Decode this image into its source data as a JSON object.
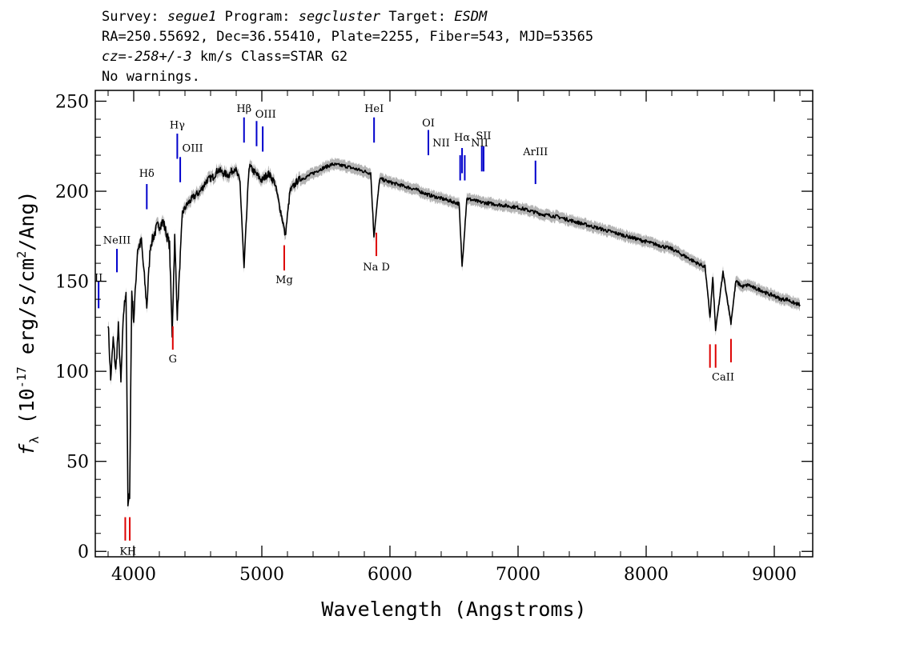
{
  "header": {
    "survey_label": "Survey:",
    "survey_value": "segue1",
    "program_label": "Program:",
    "program_value": "segcluster",
    "target_label": "Target:",
    "target_value": "ESDM",
    "line2": "RA=250.55692, Dec=36.55410, Plate=2255, Fiber=543, MJD=53565",
    "cz_label": "cz=",
    "cz_value": "-258+/-3",
    "cz_rest": " km/s Class=STAR G2",
    "line4": "No warnings."
  },
  "colors": {
    "spectrum": "#000000",
    "error_band": "#b4b4b4",
    "emission_lines": "#0000cc",
    "absorption_lines": "#dd0000"
  },
  "chart_data": {
    "type": "line",
    "xlabel": "Wavelength (Angstroms)",
    "ylabel_parts": [
      "f",
      "λ",
      " (10",
      "-17",
      " erg/s/cm",
      "2",
      "/Ang)"
    ],
    "xlim": [
      3700,
      9300
    ],
    "ylim": [
      -3,
      256
    ],
    "x_ticks": [
      4000,
      5000,
      6000,
      7000,
      8000,
      9000
    ],
    "x_tick_labels": [
      "4000",
      "5000",
      "6000",
      "7000",
      "8000",
      "9000"
    ],
    "y_ticks": [
      0,
      50,
      100,
      150,
      200,
      250
    ],
    "y_tick_labels": [
      "0",
      "50",
      "100",
      "150",
      "200",
      "250"
    ],
    "grid": false,
    "series": [
      {
        "x": [
          3800,
          3820,
          3840,
          3860,
          3880,
          3900,
          3920,
          3940,
          3955,
          3968,
          3985,
          4000,
          4030,
          4060,
          4102,
          4130,
          4180,
          4230,
          4280,
          4300,
          4320,
          4340,
          4380,
          4420,
          4470,
          4520,
          4570,
          4620,
          4660,
          4700,
          4740,
          4790,
          4830,
          4861,
          4900,
          4950,
          5000,
          5050,
          5100,
          5167,
          5183,
          5220,
          5280,
          5350,
          5450,
          5550,
          5650,
          5750,
          5850,
          5875,
          5893,
          5920,
          6000,
          6100,
          6200,
          6300,
          6400,
          6450,
          6500,
          6540,
          6563,
          6600,
          6650,
          6700,
          6800,
          6900,
          7000,
          7100,
          7200,
          7300,
          7400,
          7500,
          7600,
          7700,
          7800,
          7900,
          8000,
          8100,
          8200,
          8300,
          8400,
          8460,
          8498,
          8520,
          8542,
          8600,
          8662,
          8700,
          8750,
          8800,
          8850,
          8900,
          8950,
          9000,
          9050,
          9100,
          9150,
          9200
        ],
        "y": [
          128,
          95,
          118,
          100,
          125,
          93,
          132,
          145,
          25,
          32,
          145,
          128,
          168,
          172,
          136,
          170,
          180,
          183,
          170,
          120,
          175,
          130,
          188,
          193,
          197,
          200,
          206,
          208,
          212,
          210,
          209,
          213,
          205,
          157,
          214,
          210,
          206,
          210,
          205,
          182,
          175,
          200,
          206,
          208,
          212,
          215,
          214,
          212,
          210,
          175,
          188,
          207,
          205,
          203,
          201,
          198,
          196,
          195,
          194,
          193,
          158,
          196,
          195,
          194,
          193,
          192,
          191,
          189,
          187,
          186,
          184,
          182,
          180,
          178,
          176,
          174,
          172,
          170,
          168,
          164,
          160,
          158,
          130,
          152,
          123,
          155,
          127,
          150,
          147,
          148,
          146,
          145,
          143,
          142,
          140,
          140,
          138,
          137
        ]
      }
    ],
    "emission_lines": [
      {
        "label": "II",
        "x": 3726,
        "y1": 135,
        "y2": 150,
        "label_x": 3726,
        "label_y": 150,
        "anchor": "middle"
      },
      {
        "label": "NeIII",
        "x": 3869,
        "y1": 155,
        "y2": 168,
        "label_x": 3869,
        "label_y": 171,
        "anchor": "middle"
      },
      {
        "label": "Hδ",
        "x": 4102,
        "y1": 190,
        "y2": 204,
        "label_x": 4102,
        "label_y": 208,
        "anchor": "middle"
      },
      {
        "label": "Hγ",
        "x": 4340,
        "y1": 218,
        "y2": 232,
        "label_x": 4340,
        "label_y": 235,
        "anchor": "middle"
      },
      {
        "label": "OIII",
        "x": 4363,
        "y1": 205,
        "y2": 219,
        "label_x": 4460,
        "label_y": 222,
        "anchor": "middle"
      },
      {
        "label": "Hβ",
        "x": 4861,
        "y1": 227,
        "y2": 241,
        "label_x": 4861,
        "label_y": 244,
        "anchor": "middle"
      },
      {
        "label": "OIII",
        "x": 4959,
        "y1": 225,
        "y2": 239,
        "label_x": 5030,
        "label_y": 241,
        "anchor": "middle"
      },
      {
        "label": "OIII",
        "x": 5007,
        "y1": 222,
        "y2": 236,
        "label_x": null,
        "label_y": null,
        "anchor": "middle"
      },
      {
        "label": "HeI",
        "x": 5876,
        "y1": 227,
        "y2": 241,
        "label_x": 5876,
        "label_y": 244,
        "anchor": "middle"
      },
      {
        "label": "OI",
        "x": 6300,
        "y1": 220,
        "y2": 234,
        "label_x": 6300,
        "label_y": 236,
        "anchor": "middle"
      },
      {
        "label": "NII",
        "x": 6548,
        "y1": 206,
        "y2": 220,
        "label_x": 6400,
        "label_y": 225,
        "anchor": "middle"
      },
      {
        "label": "Hα",
        "x": 6563,
        "y1": 210,
        "y2": 224,
        "label_x": 6563,
        "label_y": 228,
        "anchor": "middle"
      },
      {
        "label": "NII",
        "x": 6584,
        "y1": 206,
        "y2": 220,
        "label_x": null,
        "label_y": null,
        "anchor": "middle"
      },
      {
        "label": "NII",
        "x": 6717,
        "y1": 211,
        "y2": 225,
        "label_x": 6700,
        "label_y": 225,
        "anchor": "middle"
      },
      {
        "label": "SII",
        "x": 6731,
        "y1": 211,
        "y2": 225,
        "label_x": 6731,
        "label_y": 229,
        "anchor": "middle"
      },
      {
        "label": "ArIII",
        "x": 7136,
        "y1": 204,
        "y2": 217,
        "label_x": 7136,
        "label_y": 220,
        "anchor": "middle"
      }
    ],
    "absorption_lines": [
      {
        "label": "K",
        "x": 3934,
        "y1": 6,
        "y2": 19,
        "label_x": 3920,
        "label_y": -2
      },
      {
        "label": "H",
        "x": 3969,
        "y1": 6,
        "y2": 19,
        "label_x": 3985,
        "label_y": -2
      },
      {
        "label": "G",
        "x": 4305,
        "y1": 112,
        "y2": 125,
        "label_x": 4305,
        "label_y": 105
      },
      {
        "label": "Mg",
        "x": 5175,
        "y1": 156,
        "y2": 170,
        "label_x": 5175,
        "label_y": 149
      },
      {
        "label": "Na  D",
        "x": 5894,
        "y1": 164,
        "y2": 177,
        "label_x": 5894,
        "label_y": 156
      },
      {
        "label": "CaII",
        "x": 8498,
        "y1": 102,
        "y2": 115,
        "label_x": 8600,
        "label_y": 95
      },
      {
        "label": "",
        "x": 8542,
        "y1": 102,
        "y2": 115,
        "label_x": null,
        "label_y": null
      },
      {
        "label": "",
        "x": 8662,
        "y1": 105,
        "y2": 118,
        "label_x": null,
        "label_y": null
      }
    ]
  }
}
